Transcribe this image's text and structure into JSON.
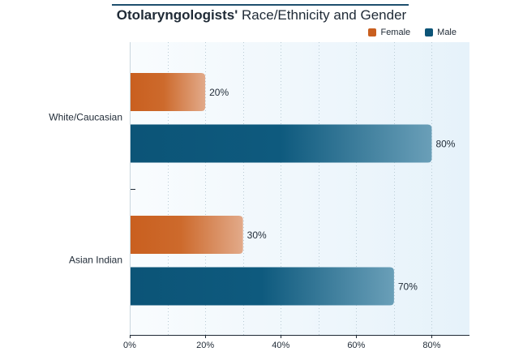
{
  "title": {
    "strong": "Otolaryngologists'",
    "rest": " Race/Ethnicity and Gender"
  },
  "legend": [
    {
      "label": "Female",
      "color": "#c95f1f"
    },
    {
      "label": "Male",
      "color": "#0c5477"
    }
  ],
  "chart_data": {
    "type": "bar",
    "orientation": "horizontal",
    "title": "Otolaryngologists' Race/Ethnicity and Gender",
    "categories": [
      "White/Caucasian",
      "Asian Indian"
    ],
    "series": [
      {
        "name": "Female",
        "values": [
          20,
          30
        ],
        "color": "#c95f1f"
      },
      {
        "name": "Male",
        "values": [
          80,
          70
        ],
        "color": "#0c5477"
      }
    ],
    "data_labels": [
      [
        "20%",
        "80%"
      ],
      [
        "30%",
        "70%"
      ]
    ],
    "xlim": [
      0,
      90
    ],
    "xticks": [
      0,
      20,
      40,
      60,
      80
    ],
    "xtick_labels": [
      "0%",
      "20%",
      "40%",
      "60%",
      "80%"
    ],
    "minor_gridlines_every": 10,
    "grid": true,
    "legend_position": "top-right"
  }
}
